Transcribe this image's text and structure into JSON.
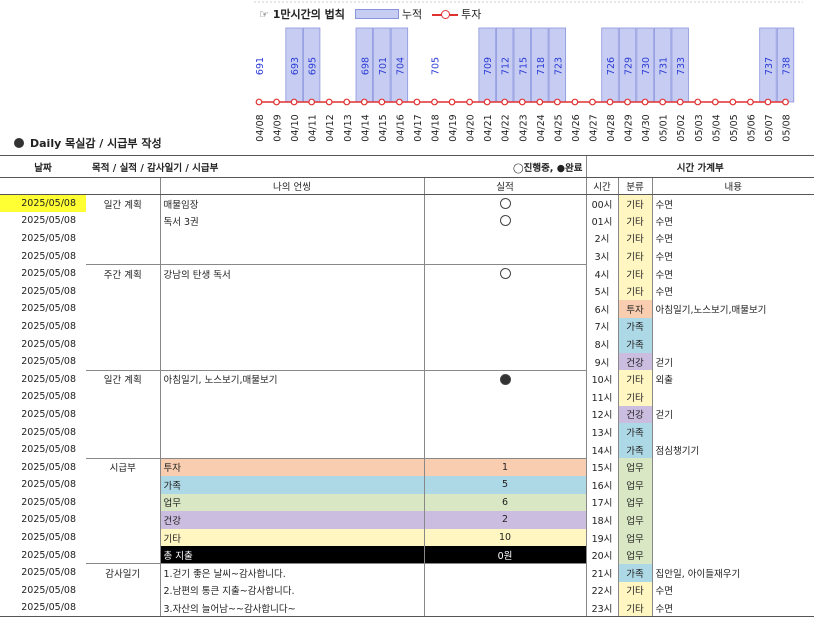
{
  "chart_data": {
    "type": "bar",
    "title": "☞ 1만시간의 법칙",
    "legend": [
      "누적",
      "투자"
    ],
    "categories": [
      "04/08",
      "04/09",
      "04/10",
      "04/11",
      "04/12",
      "04/13",
      "04/14",
      "04/15",
      "04/16",
      "04/17",
      "04/18",
      "04/19",
      "04/20",
      "04/21",
      "04/22",
      "04/23",
      "04/24",
      "04/25",
      "04/26",
      "04/27",
      "04/28",
      "04/29",
      "04/30",
      "05/01",
      "05/02",
      "05/03",
      "05/04",
      "05/05",
      "05/06",
      "05/07",
      "05/08"
    ],
    "bar_values": [
      0,
      0,
      1,
      1,
      0,
      0,
      1,
      1,
      1,
      0,
      0,
      0,
      0,
      1,
      1,
      1,
      1,
      1,
      0,
      0,
      1,
      1,
      1,
      1,
      1,
      0,
      0,
      0,
      0,
      1,
      1
    ],
    "line_values": [
      0,
      0,
      0,
      0,
      0,
      0,
      0,
      0,
      0,
      0,
      0,
      0,
      0,
      0,
      0,
      0,
      0,
      0,
      0,
      0,
      0,
      0,
      0,
      0,
      0,
      0,
      0,
      0,
      0,
      0,
      0
    ],
    "data_labels": [
      {
        "index": 0,
        "text": "691"
      },
      {
        "index": 2,
        "text": "693"
      },
      {
        "index": 3,
        "text": "695"
      },
      {
        "index": 6,
        "text": "698"
      },
      {
        "index": 7,
        "text": "701"
      },
      {
        "index": 8,
        "text": "704"
      },
      {
        "index": 10,
        "text": "705"
      },
      {
        "index": 13,
        "text": "709"
      },
      {
        "index": 14,
        "text": "712"
      },
      {
        "index": 15,
        "text": "715"
      },
      {
        "index": 16,
        "text": "718"
      },
      {
        "index": 17,
        "text": "723"
      },
      {
        "index": 20,
        "text": "726"
      },
      {
        "index": 21,
        "text": "729"
      },
      {
        "index": 22,
        "text": "730"
      },
      {
        "index": 23,
        "text": "731"
      },
      {
        "index": 24,
        "text": "733"
      },
      {
        "index": 29,
        "text": "737"
      },
      {
        "index": 30,
        "text": "738"
      }
    ],
    "colors": {
      "bar_fill": "#c7cdf2",
      "bar_stroke": "#8b95de",
      "line": "#e03131",
      "label": "#2b3bd6"
    }
  },
  "section_title": "Daily 목실감 / 시급부 작성",
  "header": {
    "date": "날짜",
    "goal": "목적 / 실적 / 감사일기 / 시급부",
    "status_legend": "◯진행중, ●완료",
    "time_ledger": "시간 가계부",
    "my_words": "나의 언씽",
    "result": "실적",
    "hour": "시간",
    "type": "분류",
    "content": "내용"
  },
  "rows": [
    {
      "date": "2025/05/08",
      "cat": "일간 계획",
      "item": "매물임장",
      "res": "open",
      "hour": "00시",
      "type": "기타",
      "desc": "수면"
    },
    {
      "date": "2025/05/08",
      "cat": "",
      "item": "독서 3권",
      "res": "open",
      "hour": "01시",
      "type": "기타",
      "desc": "수면"
    },
    {
      "date": "2025/05/08",
      "cat": "",
      "item": "",
      "res": "",
      "hour": "2시",
      "type": "기타",
      "desc": "수면"
    },
    {
      "date": "2025/05/08",
      "cat": "",
      "item": "",
      "res": "",
      "hour": "3시",
      "type": "기타",
      "desc": "수면"
    },
    {
      "date": "2025/05/08",
      "cat": "주간 계획",
      "item": "강남의 탄생 독서",
      "res": "open",
      "hour": "4시",
      "type": "기타",
      "desc": "수면"
    },
    {
      "date": "2025/05/08",
      "cat": "",
      "item": "",
      "res": "",
      "hour": "5시",
      "type": "기타",
      "desc": "수면"
    },
    {
      "date": "2025/05/08",
      "cat": "",
      "item": "",
      "res": "",
      "hour": "6시",
      "type": "투자",
      "desc": "아침일기,노스보기,매물보기"
    },
    {
      "date": "2025/05/08",
      "cat": "",
      "item": "",
      "res": "",
      "hour": "7시",
      "type": "가족",
      "desc": ""
    },
    {
      "date": "2025/05/08",
      "cat": "",
      "item": "",
      "res": "",
      "hour": "8시",
      "type": "가족",
      "desc": ""
    },
    {
      "date": "2025/05/08",
      "cat": "",
      "item": "",
      "res": "",
      "hour": "9시",
      "type": "건강",
      "desc": "걷기"
    },
    {
      "date": "2025/05/08",
      "cat": "일간 계획",
      "item": "아침일기, 노스보기,매물보기",
      "res": "filled",
      "hour": "10시",
      "type": "기타",
      "desc": "외출"
    },
    {
      "date": "2025/05/08",
      "cat": "",
      "item": "",
      "res": "",
      "hour": "11시",
      "type": "기타",
      "desc": ""
    },
    {
      "date": "2025/05/08",
      "cat": "",
      "item": "",
      "res": "",
      "hour": "12시",
      "type": "건강",
      "desc": "걷기"
    },
    {
      "date": "2025/05/08",
      "cat": "",
      "item": "",
      "res": "",
      "hour": "13시",
      "type": "가족",
      "desc": ""
    },
    {
      "date": "2025/05/08",
      "cat": "",
      "item": "",
      "res": "",
      "hour": "14시",
      "type": "가족",
      "desc": "점심챙기기"
    },
    {
      "date": "2025/05/08",
      "cat": "시급부",
      "item": "투자",
      "res": "1",
      "hour": "15시",
      "type": "업무",
      "desc": ""
    },
    {
      "date": "2025/05/08",
      "cat": "",
      "item": "가족",
      "res": "5",
      "hour": "16시",
      "type": "업무",
      "desc": ""
    },
    {
      "date": "2025/05/08",
      "cat": "",
      "item": "업무",
      "res": "6",
      "hour": "17시",
      "type": "업무",
      "desc": ""
    },
    {
      "date": "2025/05/08",
      "cat": "",
      "item": "건강",
      "res": "2",
      "hour": "18시",
      "type": "업무",
      "desc": ""
    },
    {
      "date": "2025/05/08",
      "cat": "",
      "item": "기타",
      "res": "10",
      "hour": "19시",
      "type": "업무",
      "desc": ""
    },
    {
      "date": "2025/05/08",
      "cat": "",
      "item": "총 지출",
      "res": "0원",
      "hour": "20시",
      "type": "업무",
      "desc": ""
    },
    {
      "date": "2025/05/08",
      "cat": "감사일기",
      "item": "1.걷기 좋은 날씨~감사합니다.",
      "res": "",
      "hour": "21시",
      "type": "가족",
      "desc": "집안일, 아이들재우기"
    },
    {
      "date": "2025/05/08",
      "cat": "",
      "item": "2.남편의 통큰 지출~감사합니다.",
      "res": "",
      "hour": "22시",
      "type": "기타",
      "desc": "수면"
    },
    {
      "date": "2025/05/08",
      "cat": "",
      "item": "3.자산의 늘어남~~감사합니다~",
      "res": "",
      "hour": "23시",
      "type": "기타",
      "desc": "수면"
    }
  ]
}
